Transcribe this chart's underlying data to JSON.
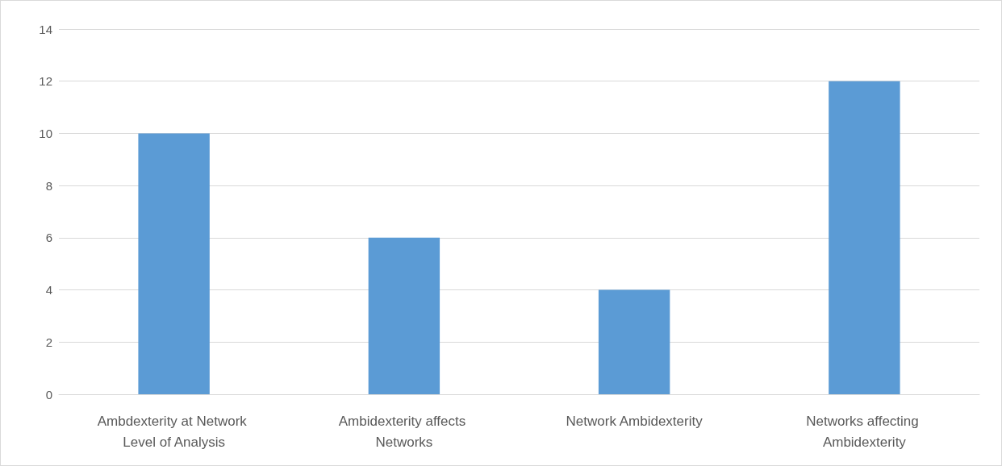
{
  "chart_data": {
    "type": "bar",
    "categories": [
      "Ambdexterity at Network Level of Analysis",
      "Ambidexterity affects Networks",
      "Network Ambidexterity",
      "Networks affecting Ambidexterity"
    ],
    "values": [
      10,
      6,
      4,
      12
    ],
    "color": "#5b9bd5",
    "ylim": [
      0,
      14
    ],
    "yticks": [
      0,
      2,
      4,
      6,
      8,
      10,
      12,
      14
    ],
    "grid": "y"
  }
}
